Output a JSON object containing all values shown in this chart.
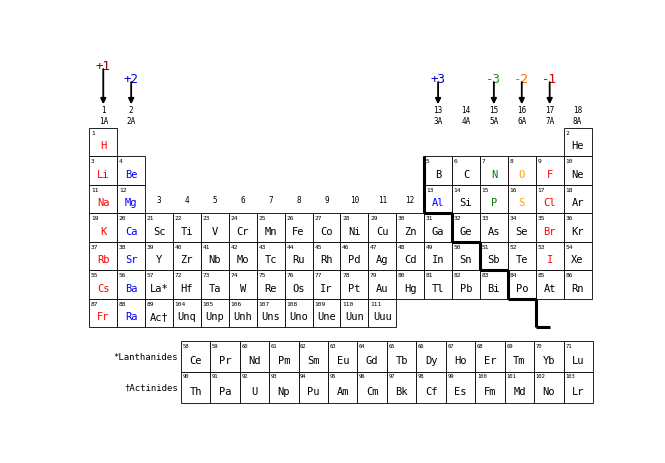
{
  "bg_color": "#ffffff",
  "elements": [
    {
      "sym": "H",
      "num": 1,
      "col": 1,
      "row": 1,
      "color": "red"
    },
    {
      "sym": "He",
      "num": 2,
      "col": 18,
      "row": 1,
      "color": "black"
    },
    {
      "sym": "Li",
      "num": 3,
      "col": 1,
      "row": 2,
      "color": "red"
    },
    {
      "sym": "Be",
      "num": 4,
      "col": 2,
      "row": 2,
      "color": "blue"
    },
    {
      "sym": "B",
      "num": 5,
      "col": 13,
      "row": 2,
      "color": "black"
    },
    {
      "sym": "C",
      "num": 6,
      "col": 14,
      "row": 2,
      "color": "black"
    },
    {
      "sym": "N",
      "num": 7,
      "col": 15,
      "row": 2,
      "color": "green"
    },
    {
      "sym": "O",
      "num": 8,
      "col": 16,
      "row": 2,
      "color": "orange"
    },
    {
      "sym": "F",
      "num": 9,
      "col": 17,
      "row": 2,
      "color": "red"
    },
    {
      "sym": "Ne",
      "num": 10,
      "col": 18,
      "row": 2,
      "color": "black"
    },
    {
      "sym": "Na",
      "num": 11,
      "col": 1,
      "row": 3,
      "color": "red"
    },
    {
      "sym": "Mg",
      "num": 12,
      "col": 2,
      "row": 3,
      "color": "blue"
    },
    {
      "sym": "Al",
      "num": 13,
      "col": 13,
      "row": 3,
      "color": "blue"
    },
    {
      "sym": "Si",
      "num": 14,
      "col": 14,
      "row": 3,
      "color": "black"
    },
    {
      "sym": "P",
      "num": 15,
      "col": 15,
      "row": 3,
      "color": "green"
    },
    {
      "sym": "S",
      "num": 16,
      "col": 16,
      "row": 3,
      "color": "orange"
    },
    {
      "sym": "Cl",
      "num": 17,
      "col": 17,
      "row": 3,
      "color": "red"
    },
    {
      "sym": "Ar",
      "num": 18,
      "col": 18,
      "row": 3,
      "color": "black"
    },
    {
      "sym": "K",
      "num": 19,
      "col": 1,
      "row": 4,
      "color": "red"
    },
    {
      "sym": "Ca",
      "num": 20,
      "col": 2,
      "row": 4,
      "color": "blue"
    },
    {
      "sym": "Sc",
      "num": 21,
      "col": 3,
      "row": 4,
      "color": "black"
    },
    {
      "sym": "Ti",
      "num": 22,
      "col": 4,
      "row": 4,
      "color": "black"
    },
    {
      "sym": "V",
      "num": 23,
      "col": 5,
      "row": 4,
      "color": "black"
    },
    {
      "sym": "Cr",
      "num": 24,
      "col": 6,
      "row": 4,
      "color": "black"
    },
    {
      "sym": "Mn",
      "num": 25,
      "col": 7,
      "row": 4,
      "color": "black"
    },
    {
      "sym": "Fe",
      "num": 26,
      "col": 8,
      "row": 4,
      "color": "black"
    },
    {
      "sym": "Co",
      "num": 27,
      "col": 9,
      "row": 4,
      "color": "black"
    },
    {
      "sym": "Ni",
      "num": 28,
      "col": 10,
      "row": 4,
      "color": "black"
    },
    {
      "sym": "Cu",
      "num": 29,
      "col": 11,
      "row": 4,
      "color": "black"
    },
    {
      "sym": "Zn",
      "num": 30,
      "col": 12,
      "row": 4,
      "color": "black"
    },
    {
      "sym": "Ga",
      "num": 31,
      "col": 13,
      "row": 4,
      "color": "black"
    },
    {
      "sym": "Ge",
      "num": 32,
      "col": 14,
      "row": 4,
      "color": "black"
    },
    {
      "sym": "As",
      "num": 33,
      "col": 15,
      "row": 4,
      "color": "black"
    },
    {
      "sym": "Se",
      "num": 34,
      "col": 16,
      "row": 4,
      "color": "black"
    },
    {
      "sym": "Br",
      "num": 35,
      "col": 17,
      "row": 4,
      "color": "red"
    },
    {
      "sym": "Kr",
      "num": 36,
      "col": 18,
      "row": 4,
      "color": "black"
    },
    {
      "sym": "Rb",
      "num": 37,
      "col": 1,
      "row": 5,
      "color": "red"
    },
    {
      "sym": "Sr",
      "num": 38,
      "col": 2,
      "row": 5,
      "color": "blue"
    },
    {
      "sym": "Y",
      "num": 39,
      "col": 3,
      "row": 5,
      "color": "black"
    },
    {
      "sym": "Zr",
      "num": 40,
      "col": 4,
      "row": 5,
      "color": "black"
    },
    {
      "sym": "Nb",
      "num": 41,
      "col": 5,
      "row": 5,
      "color": "black"
    },
    {
      "sym": "Mo",
      "num": 42,
      "col": 6,
      "row": 5,
      "color": "black"
    },
    {
      "sym": "Tc",
      "num": 43,
      "col": 7,
      "row": 5,
      "color": "black"
    },
    {
      "sym": "Ru",
      "num": 44,
      "col": 8,
      "row": 5,
      "color": "black"
    },
    {
      "sym": "Rh",
      "num": 45,
      "col": 9,
      "row": 5,
      "color": "black"
    },
    {
      "sym": "Pd",
      "num": 46,
      "col": 10,
      "row": 5,
      "color": "black"
    },
    {
      "sym": "Ag",
      "num": 47,
      "col": 11,
      "row": 5,
      "color": "black"
    },
    {
      "sym": "Cd",
      "num": 48,
      "col": 12,
      "row": 5,
      "color": "black"
    },
    {
      "sym": "In",
      "num": 49,
      "col": 13,
      "row": 5,
      "color": "black"
    },
    {
      "sym": "Sn",
      "num": 50,
      "col": 14,
      "row": 5,
      "color": "black"
    },
    {
      "sym": "Sb",
      "num": 51,
      "col": 15,
      "row": 5,
      "color": "black"
    },
    {
      "sym": "Te",
      "num": 52,
      "col": 16,
      "row": 5,
      "color": "black"
    },
    {
      "sym": "I",
      "num": 53,
      "col": 17,
      "row": 5,
      "color": "red"
    },
    {
      "sym": "Xe",
      "num": 54,
      "col": 18,
      "row": 5,
      "color": "black"
    },
    {
      "sym": "Cs",
      "num": 55,
      "col": 1,
      "row": 6,
      "color": "red"
    },
    {
      "sym": "Ba",
      "num": 56,
      "col": 2,
      "row": 6,
      "color": "blue"
    },
    {
      "sym": "La*",
      "num": 57,
      "col": 3,
      "row": 6,
      "color": "black"
    },
    {
      "sym": "Hf",
      "num": 72,
      "col": 4,
      "row": 6,
      "color": "black"
    },
    {
      "sym": "Ta",
      "num": 73,
      "col": 5,
      "row": 6,
      "color": "black"
    },
    {
      "sym": "W",
      "num": 74,
      "col": 6,
      "row": 6,
      "color": "black"
    },
    {
      "sym": "Re",
      "num": 75,
      "col": 7,
      "row": 6,
      "color": "black"
    },
    {
      "sym": "Os",
      "num": 76,
      "col": 8,
      "row": 6,
      "color": "black"
    },
    {
      "sym": "Ir",
      "num": 77,
      "col": 9,
      "row": 6,
      "color": "black"
    },
    {
      "sym": "Pt",
      "num": 78,
      "col": 10,
      "row": 6,
      "color": "black"
    },
    {
      "sym": "Au",
      "num": 79,
      "col": 11,
      "row": 6,
      "color": "black"
    },
    {
      "sym": "Hg",
      "num": 80,
      "col": 12,
      "row": 6,
      "color": "black"
    },
    {
      "sym": "Tl",
      "num": 81,
      "col": 13,
      "row": 6,
      "color": "black"
    },
    {
      "sym": "Pb",
      "num": 82,
      "col": 14,
      "row": 6,
      "color": "black"
    },
    {
      "sym": "Bi",
      "num": 83,
      "col": 15,
      "row": 6,
      "color": "black"
    },
    {
      "sym": "Po",
      "num": 84,
      "col": 16,
      "row": 6,
      "color": "black"
    },
    {
      "sym": "At",
      "num": 85,
      "col": 17,
      "row": 6,
      "color": "black"
    },
    {
      "sym": "Rn",
      "num": 86,
      "col": 18,
      "row": 6,
      "color": "black"
    },
    {
      "sym": "Fr",
      "num": 87,
      "col": 1,
      "row": 7,
      "color": "red"
    },
    {
      "sym": "Ra",
      "num": 88,
      "col": 2,
      "row": 7,
      "color": "blue"
    },
    {
      "sym": "Ac†",
      "num": 89,
      "col": 3,
      "row": 7,
      "color": "black"
    },
    {
      "sym": "Unq",
      "num": 104,
      "col": 4,
      "row": 7,
      "color": "black"
    },
    {
      "sym": "Unp",
      "num": 105,
      "col": 5,
      "row": 7,
      "color": "black"
    },
    {
      "sym": "Unh",
      "num": 106,
      "col": 6,
      "row": 7,
      "color": "black"
    },
    {
      "sym": "Uns",
      "num": 107,
      "col": 7,
      "row": 7,
      "color": "black"
    },
    {
      "sym": "Uno",
      "num": 108,
      "col": 8,
      "row": 7,
      "color": "black"
    },
    {
      "sym": "Une",
      "num": 109,
      "col": 9,
      "row": 7,
      "color": "black"
    },
    {
      "sym": "Uun",
      "num": 110,
      "col": 10,
      "row": 7,
      "color": "black"
    },
    {
      "sym": "Uuu",
      "num": 111,
      "col": 11,
      "row": 7,
      "color": "black"
    }
  ],
  "lanthanides": [
    {
      "sym": "Ce",
      "num": 58
    },
    {
      "sym": "Pr",
      "num": 59
    },
    {
      "sym": "Nd",
      "num": 60
    },
    {
      "sym": "Pm",
      "num": 61
    },
    {
      "sym": "Sm",
      "num": 62
    },
    {
      "sym": "Eu",
      "num": 63
    },
    {
      "sym": "Gd",
      "num": 64
    },
    {
      "sym": "Tb",
      "num": 65
    },
    {
      "sym": "Dy",
      "num": 66
    },
    {
      "sym": "Ho",
      "num": 67
    },
    {
      "sym": "Er",
      "num": 68
    },
    {
      "sym": "Tm",
      "num": 69
    },
    {
      "sym": "Yb",
      "num": 70
    },
    {
      "sym": "Lu",
      "num": 71
    }
  ],
  "actinides": [
    {
      "sym": "Th",
      "num": 90
    },
    {
      "sym": "Pa",
      "num": 91
    },
    {
      "sym": "U",
      "num": 92
    },
    {
      "sym": "Np",
      "num": 93
    },
    {
      "sym": "Pu",
      "num": 94
    },
    {
      "sym": "Am",
      "num": 95
    },
    {
      "sym": "Cm",
      "num": 96
    },
    {
      "sym": "Bk",
      "num": 97
    },
    {
      "sym": "Cf",
      "num": 98
    },
    {
      "sym": "Es",
      "num": 99
    },
    {
      "sym": "Fm",
      "num": 100
    },
    {
      "sym": "Md",
      "num": 101
    },
    {
      "sym": "No",
      "num": 102
    },
    {
      "sym": "Lr",
      "num": 103
    }
  ],
  "transition_group_nums": [
    3,
    4,
    5,
    6,
    7,
    8,
    9,
    10,
    11,
    12
  ],
  "charges": [
    {
      "label": "+1",
      "col": 1,
      "color": "#8b0000"
    },
    {
      "label": "+2",
      "col": 2,
      "color": "#0000cd"
    },
    {
      "label": "+3",
      "col": 13,
      "color": "#0000cd"
    },
    {
      "label": "-3",
      "col": 15,
      "color": "#228B22"
    },
    {
      "label": "-2",
      "col": 16,
      "color": "#ff6600"
    },
    {
      "label": "-1",
      "col": 17,
      "color": "#cc0000"
    }
  ]
}
